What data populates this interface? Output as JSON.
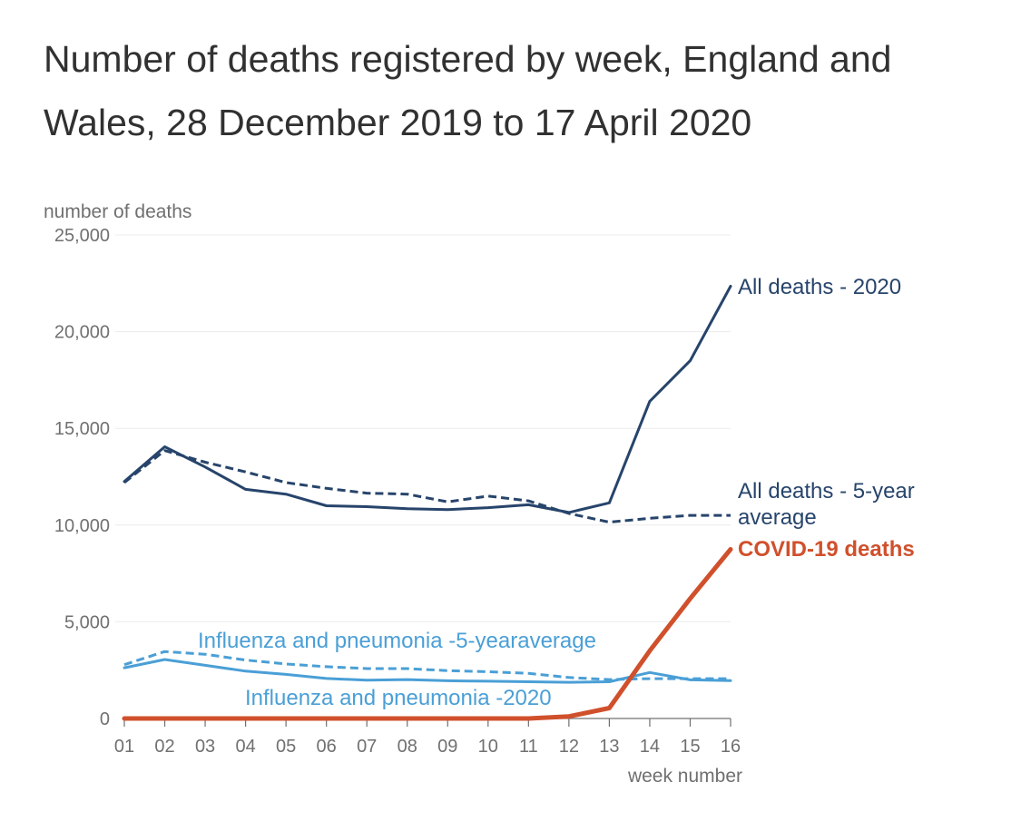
{
  "chart_data": {
    "type": "line",
    "title": "Number of deaths registered by week, England and Wales, 28 December 2019 to 17 April 2020",
    "ylabel": "number of deaths",
    "xlabel": "week number",
    "x": [
      "01",
      "02",
      "03",
      "04",
      "05",
      "06",
      "07",
      "08",
      "09",
      "10",
      "11",
      "12",
      "13",
      "14",
      "15",
      "16"
    ],
    "y_ticks": [
      "0",
      "5,000",
      "10,000",
      "15,000",
      "20,000",
      "25,000"
    ],
    "y_tick_values": [
      0,
      5000,
      10000,
      15000,
      20000,
      25000
    ],
    "ylim": [
      0,
      25000
    ],
    "grid": "horizontal",
    "series": [
      {
        "name": "All deaths - 2020",
        "style": "solid",
        "color": "#27446b",
        "values": [
          12250,
          14050,
          13000,
          11850,
          11600,
          11000,
          10950,
          10850,
          10800,
          10900,
          11050,
          10650,
          11150,
          16400,
          18500,
          22350
        ]
      },
      {
        "name": "All deaths - 5-year average",
        "style": "dashed",
        "color": "#27446b",
        "values": [
          12200,
          13850,
          13250,
          12750,
          12200,
          11900,
          11650,
          11600,
          11200,
          11500,
          11250,
          10600,
          10150,
          10350,
          10500,
          10500
        ]
      },
      {
        "name": "COVID-19 deaths",
        "style": "solid-bold",
        "color": "#d0502c",
        "values": [
          0,
          0,
          0,
          0,
          0,
          0,
          0,
          0,
          0,
          0,
          0,
          110,
          540,
          3500,
          6200,
          8750
        ]
      },
      {
        "name": "Influenza and pneumonia -5-yearaverage",
        "style": "dashed",
        "color": "#4a9fd6",
        "values": [
          2780,
          3460,
          3320,
          3020,
          2820,
          2680,
          2580,
          2580,
          2470,
          2420,
          2330,
          2120,
          2010,
          2060,
          2060,
          2060
        ]
      },
      {
        "name": "Influenza and pneumonia -2020",
        "style": "solid",
        "color": "#4a9fd6",
        "values": [
          2620,
          3050,
          2750,
          2450,
          2280,
          2070,
          1980,
          2010,
          1950,
          1930,
          1900,
          1870,
          1900,
          2380,
          2000,
          1960
        ]
      }
    ],
    "labels": {
      "all_2020": "All deaths - 2020",
      "all_avg_1": "All deaths - 5-year",
      "all_avg_2": "average",
      "covid": "COVID-19 deaths",
      "flu_avg": "Influenza and pneumonia -5-yearaverage",
      "flu_2020": "Influenza and pneumonia -2020"
    }
  }
}
